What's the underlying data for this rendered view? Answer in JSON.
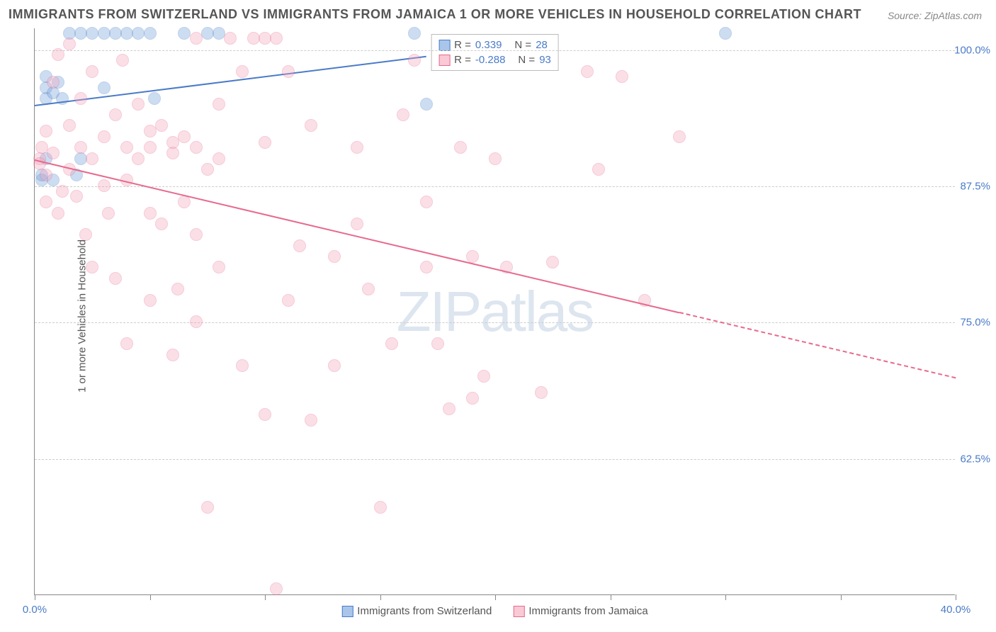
{
  "title": "IMMIGRANTS FROM SWITZERLAND VS IMMIGRANTS FROM JAMAICA 1 OR MORE VEHICLES IN HOUSEHOLD CORRELATION CHART",
  "source": "Source: ZipAtlas.com",
  "ylabel": "1 or more Vehicles in Household",
  "watermark": "ZIPatlas",
  "chart": {
    "type": "scatter",
    "xlim": [
      0,
      40
    ],
    "ylim": [
      50,
      102
    ],
    "xtick_positions": [
      0,
      5,
      10,
      15,
      20,
      25,
      30,
      35,
      40
    ],
    "xtick_labels": {
      "0": "0.0%",
      "40": "40.0%"
    },
    "ytick_positions": [
      62.5,
      75.0,
      87.5,
      100.0
    ],
    "ytick_labels": [
      "62.5%",
      "75.0%",
      "87.5%",
      "100.0%"
    ],
    "background_color": "#ffffff",
    "grid_color": "#cccccc",
    "axis_color": "#888888",
    "marker_radius": 9,
    "marker_opacity": 0.35,
    "series": [
      {
        "name": "Immigrants from Switzerland",
        "fill": "#6f9fd8",
        "stroke": "#4a7bc8",
        "R": "0.339",
        "N": "28",
        "trend": {
          "x1": 0,
          "y1": 95.0,
          "x2": 17.0,
          "y2": 99.5,
          "dash": false
        },
        "points": [
          [
            0.3,
            88.0
          ],
          [
            0.3,
            88.5
          ],
          [
            0.5,
            97.5
          ],
          [
            0.5,
            96.5
          ],
          [
            0.5,
            95.5
          ],
          [
            0.8,
            96.0
          ],
          [
            0.5,
            90.0
          ],
          [
            0.8,
            88.0
          ],
          [
            1.0,
            97.0
          ],
          [
            1.2,
            95.5
          ],
          [
            1.5,
            101.5
          ],
          [
            2.0,
            101.5
          ],
          [
            2.5,
            101.5
          ],
          [
            3.0,
            101.5
          ],
          [
            3.0,
            96.5
          ],
          [
            3.5,
            101.5
          ],
          [
            4.0,
            101.5
          ],
          [
            4.5,
            101.5
          ],
          [
            5.0,
            101.5
          ],
          [
            5.2,
            95.5
          ],
          [
            6.5,
            101.5
          ],
          [
            7.5,
            101.5
          ],
          [
            8.0,
            101.5
          ],
          [
            2.0,
            90.0
          ],
          [
            17.0,
            95.0
          ],
          [
            16.5,
            101.5
          ],
          [
            30.0,
            101.5
          ],
          [
            1.8,
            88.5
          ]
        ]
      },
      {
        "name": "Immigrants from Jamaica",
        "fill": "#f5a5bb",
        "stroke": "#e76a8d",
        "R": "-0.288",
        "N": "93",
        "trend": {
          "x1": 0,
          "y1": 90.0,
          "x2": 28.0,
          "y2": 76.0,
          "dash": false
        },
        "trend_ext": {
          "x1": 28.0,
          "y1": 76.0,
          "x2": 40.0,
          "y2": 70.0,
          "dash": true
        },
        "points": [
          [
            0.2,
            90.0
          ],
          [
            0.2,
            89.5
          ],
          [
            0.3,
            91.0
          ],
          [
            0.5,
            92.5
          ],
          [
            0.5,
            88.5
          ],
          [
            0.5,
            86.0
          ],
          [
            0.8,
            90.5
          ],
          [
            0.8,
            97.0
          ],
          [
            1.0,
            99.5
          ],
          [
            1.0,
            85.0
          ],
          [
            1.2,
            87.0
          ],
          [
            1.5,
            93.0
          ],
          [
            1.5,
            89.0
          ],
          [
            1.8,
            86.5
          ],
          [
            2.0,
            91.0
          ],
          [
            2.0,
            95.5
          ],
          [
            2.2,
            83.0
          ],
          [
            2.5,
            98.0
          ],
          [
            2.5,
            90.0
          ],
          [
            2.5,
            80.0
          ],
          [
            3.0,
            92.0
          ],
          [
            3.0,
            87.5
          ],
          [
            3.2,
            85.0
          ],
          [
            3.5,
            94.0
          ],
          [
            3.5,
            79.0
          ],
          [
            4.0,
            91.0
          ],
          [
            4.0,
            88.0
          ],
          [
            4.0,
            73.0
          ],
          [
            4.5,
            90.0
          ],
          [
            4.5,
            95.0
          ],
          [
            5.0,
            92.5
          ],
          [
            5.0,
            91.0
          ],
          [
            5.0,
            85.0
          ],
          [
            5.0,
            77.0
          ],
          [
            5.5,
            93.0
          ],
          [
            5.5,
            84.0
          ],
          [
            6.0,
            90.5
          ],
          [
            6.0,
            91.5
          ],
          [
            6.0,
            72.0
          ],
          [
            6.2,
            78.0
          ],
          [
            6.5,
            92.0
          ],
          [
            6.5,
            86.0
          ],
          [
            7.0,
            101.0
          ],
          [
            7.0,
            91.0
          ],
          [
            7.0,
            83.0
          ],
          [
            7.0,
            75.0
          ],
          [
            7.5,
            89.0
          ],
          [
            7.5,
            58.0
          ],
          [
            8.0,
            95.0
          ],
          [
            8.0,
            90.0
          ],
          [
            8.0,
            80.0
          ],
          [
            8.5,
            101.0
          ],
          [
            9.0,
            98.0
          ],
          [
            9.0,
            71.0
          ],
          [
            9.5,
            101.0
          ],
          [
            10.0,
            101.0
          ],
          [
            10.0,
            91.5
          ],
          [
            10.0,
            66.5
          ],
          [
            10.5,
            101.0
          ],
          [
            10.5,
            50.5
          ],
          [
            11.0,
            98.0
          ],
          [
            11.0,
            77.0
          ],
          [
            11.5,
            82.0
          ],
          [
            12.0,
            66.0
          ],
          [
            12.0,
            93.0
          ],
          [
            13.0,
            71.0
          ],
          [
            13.0,
            81.0
          ],
          [
            14.0,
            84.0
          ],
          [
            14.0,
            91.0
          ],
          [
            14.5,
            78.0
          ],
          [
            15.0,
            58.0
          ],
          [
            15.5,
            73.0
          ],
          [
            16.0,
            94.0
          ],
          [
            16.5,
            99.0
          ],
          [
            17.0,
            86.0
          ],
          [
            17.0,
            80.0
          ],
          [
            17.5,
            73.0
          ],
          [
            18.0,
            67.0
          ],
          [
            18.5,
            91.0
          ],
          [
            19.0,
            81.0
          ],
          [
            19.0,
            68.0
          ],
          [
            19.5,
            70.0
          ],
          [
            20.0,
            90.0
          ],
          [
            20.5,
            80.0
          ],
          [
            22.0,
            68.5
          ],
          [
            22.5,
            80.5
          ],
          [
            24.0,
            98.0
          ],
          [
            24.5,
            89.0
          ],
          [
            25.5,
            97.5
          ],
          [
            26.5,
            77.0
          ],
          [
            28.0,
            92.0
          ],
          [
            1.5,
            100.5
          ],
          [
            3.8,
            99.0
          ]
        ]
      }
    ]
  },
  "legend": [
    {
      "label": "Immigrants from Switzerland",
      "fill": "#a9c6ea",
      "stroke": "#4a7bc8"
    },
    {
      "label": "Immigrants from Jamaica",
      "fill": "#f9c9d6",
      "stroke": "#e76a8d"
    }
  ],
  "statbox": [
    {
      "fill": "#a9c6ea",
      "stroke": "#4a7bc8",
      "R": "0.339",
      "N": "28"
    },
    {
      "fill": "#f9c9d6",
      "stroke": "#e76a8d",
      "R": "-0.288",
      "N": "93"
    }
  ]
}
